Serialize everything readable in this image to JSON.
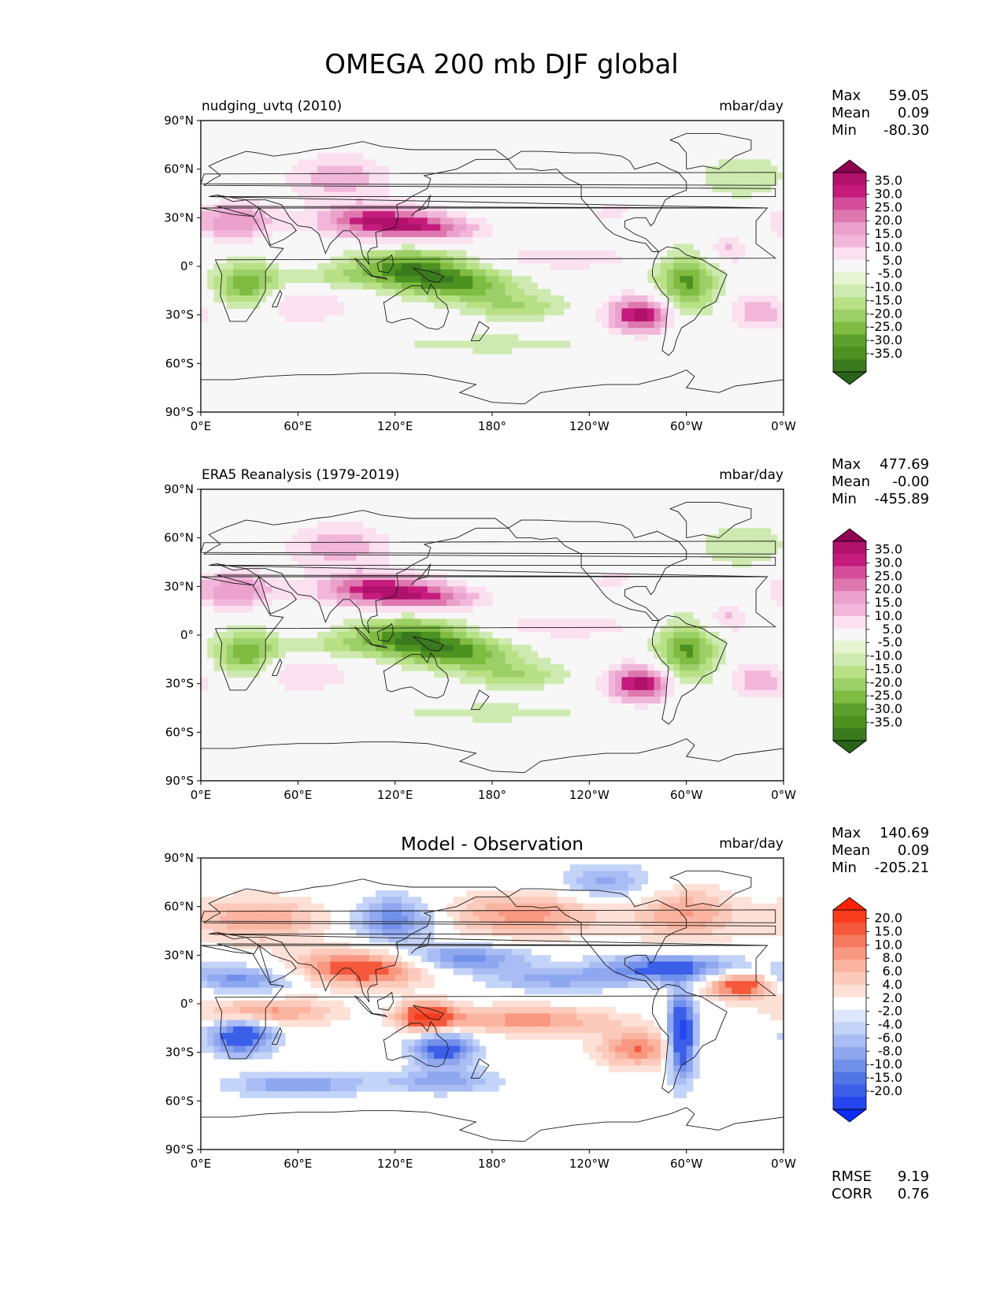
{
  "figure_title": "OMEGA 200 mb DJF global",
  "lat_ticks": [
    "90°N",
    "60°N",
    "30°N",
    "0°",
    "30°S",
    "60°S",
    "90°S"
  ],
  "lon_ticks": [
    "0°E",
    "60°E",
    "120°E",
    "180°",
    "120°W",
    "60°W",
    "0°W"
  ],
  "panels": [
    {
      "title": "nudging_uvtq (2010)",
      "units": "mbar/day",
      "stats": [
        {
          "label": "Max",
          "value": "59.05"
        },
        {
          "label": "Mean",
          "value": "0.09"
        },
        {
          "label": "Min",
          "value": "-80.30"
        }
      ],
      "colorbar": {
        "labels": [
          "35.0",
          "30.0",
          "25.0",
          "20.0",
          "15.0",
          "10.0",
          "5.0",
          "-5.0",
          "-10.0",
          "-15.0",
          "-20.0",
          "-25.0",
          "-30.0",
          "-35.0"
        ],
        "colors": [
          "#8e0152",
          "#b0116a",
          "#c51b7d",
          "#d44e9c",
          "#de77ae",
          "#eaa2cd",
          "#f1b6da",
          "#fbe0ef",
          "#f7f7f7",
          "#e6f5d0",
          "#cfeab0",
          "#b8e186",
          "#9bcf67",
          "#7fbc41",
          "#5ca12f",
          "#4d9221",
          "#3a7a1e",
          "#276419"
        ]
      }
    },
    {
      "title": "ERA5 Reanalysis (1979-2019)",
      "units": "mbar/day",
      "stats": [
        {
          "label": "Max",
          "value": "477.69"
        },
        {
          "label": "Mean",
          "value": "-0.00"
        },
        {
          "label": "Min",
          "value": "-455.89"
        }
      ],
      "colorbar": {
        "labels": [
          "35.0",
          "30.0",
          "25.0",
          "20.0",
          "15.0",
          "10.0",
          "5.0",
          "-5.0",
          "-10.0",
          "-15.0",
          "-20.0",
          "-25.0",
          "-30.0",
          "-35.0"
        ],
        "colors": [
          "#8e0152",
          "#b0116a",
          "#c51b7d",
          "#d44e9c",
          "#de77ae",
          "#eaa2cd",
          "#f1b6da",
          "#fbe0ef",
          "#f7f7f7",
          "#e6f5d0",
          "#cfeab0",
          "#b8e186",
          "#9bcf67",
          "#7fbc41",
          "#5ca12f",
          "#4d9221",
          "#3a7a1e",
          "#276419"
        ]
      }
    },
    {
      "title": "Model - Observation",
      "units": "mbar/day",
      "stats": [
        {
          "label": "Max",
          "value": "140.69"
        },
        {
          "label": "Mean",
          "value": "0.09"
        },
        {
          "label": "Min",
          "value": "-205.21"
        }
      ],
      "extra_stats": [
        {
          "label": "RMSE",
          "value": "9.19"
        },
        {
          "label": "CORR",
          "value": "0.76"
        }
      ],
      "colorbar": {
        "labels": [
          "20.0",
          "15.0",
          "10.0",
          "8.0",
          "6.0",
          "4.0",
          "2.0",
          "-2.0",
          "-4.0",
          "-6.0",
          "-8.0",
          "-10.0",
          "-15.0",
          "-20.0"
        ],
        "colors": [
          "#ff2200",
          "#f83c1c",
          "#f5583a",
          "#f67a60",
          "#f89880",
          "#fab4a0",
          "#fccabb",
          "#fde0d6",
          "#ffffff",
          "#dde6fb",
          "#c4d3f8",
          "#a9bdf4",
          "#8ea7ef",
          "#7190ea",
          "#5275e6",
          "#3b5fe8",
          "#2546ee",
          "#0a2cf5"
        ]
      }
    }
  ],
  "chart_data": {
    "type": "heatmap",
    "title": "OMEGA 200 mb DJF global",
    "variable": "OMEGA",
    "level": "200 mb",
    "season": "DJF",
    "region": "global",
    "units": "mbar/day",
    "x_range": [
      0,
      360
    ],
    "y_range": [
      -90,
      90
    ],
    "xlabel": "",
    "ylabel": "",
    "panels": [
      "nudging_uvtq (2010)",
      "ERA5 Reanalysis (1979-2019)",
      "Model - Observation"
    ],
    "contour_levels_fields": [
      -35,
      -30,
      -25,
      -20,
      -15,
      -10,
      -5,
      5,
      10,
      15,
      20,
      25,
      30,
      35
    ],
    "contour_levels_diff": [
      -20,
      -15,
      -10,
      -8,
      -6,
      -4,
      -2,
      2,
      4,
      6,
      8,
      10,
      15,
      20
    ],
    "features": {
      "fields": [
        {
          "lon": 110,
          "lat": 28,
          "dlon": 26,
          "dlat": 7,
          "v": 30
        },
        {
          "lon": 145,
          "lat": 22,
          "dlon": 22,
          "dlat": 5,
          "v": 18
        },
        {
          "lon": 20,
          "lat": 28,
          "dlon": 18,
          "dlat": 8,
          "v": 20
        },
        {
          "lon": 85,
          "lat": 55,
          "dlon": 22,
          "dlat": 10,
          "v": 14
        },
        {
          "lon": 272,
          "lat": -30,
          "dlon": 14,
          "dlat": 8,
          "v": 34
        },
        {
          "lon": 325,
          "lat": 10,
          "dlon": 10,
          "dlat": 6,
          "v": 12
        },
        {
          "lon": 345,
          "lat": -28,
          "dlon": 14,
          "dlat": 8,
          "v": 14
        },
        {
          "lon": 60,
          "lat": -22,
          "dlon": 26,
          "dlat": 10,
          "v": 10
        },
        {
          "lon": 220,
          "lat": 5,
          "dlon": 45,
          "dlat": 6,
          "v": 8
        },
        {
          "lon": 250,
          "lat": 38,
          "dlon": 18,
          "dlat": 8,
          "v": 10
        },
        {
          "lon": 130,
          "lat": 0,
          "dlon": 28,
          "dlat": 8,
          "v": -28
        },
        {
          "lon": 160,
          "lat": -12,
          "dlon": 26,
          "dlat": 7,
          "v": -22
        },
        {
          "lon": 195,
          "lat": -25,
          "dlon": 22,
          "dlat": 6,
          "v": -14
        },
        {
          "lon": 28,
          "lat": -12,
          "dlon": 14,
          "dlat": 10,
          "v": -26
        },
        {
          "lon": 300,
          "lat": -10,
          "dlon": 14,
          "dlat": 14,
          "v": -26
        },
        {
          "lon": 80,
          "lat": -8,
          "dlon": 30,
          "dlat": 5,
          "v": -10
        },
        {
          "lon": 240,
          "lat": 42,
          "dlon": 18,
          "dlat": 6,
          "v": -9
        },
        {
          "lon": 335,
          "lat": 55,
          "dlon": 20,
          "dlat": 10,
          "v": -10
        },
        {
          "lon": 180,
          "lat": -48,
          "dlon": 60,
          "dlat": 5,
          "v": -7
        }
      ],
      "diff": [
        {
          "lon": 100,
          "lat": 22,
          "dlon": 30,
          "dlat": 8,
          "v": 14
        },
        {
          "lon": 35,
          "lat": 52,
          "dlon": 30,
          "dlat": 10,
          "v": 8
        },
        {
          "lon": 200,
          "lat": 55,
          "dlon": 35,
          "dlat": 10,
          "v": 9
        },
        {
          "lon": 300,
          "lat": 55,
          "dlon": 22,
          "dlat": 12,
          "v": 8
        },
        {
          "lon": 270,
          "lat": -28,
          "dlon": 18,
          "dlat": 8,
          "v": 10
        },
        {
          "lon": 335,
          "lat": 12,
          "dlon": 16,
          "dlat": 6,
          "v": 16
        },
        {
          "lon": 200,
          "lat": -10,
          "dlon": 40,
          "dlat": 6,
          "v": 9
        },
        {
          "lon": 40,
          "lat": -5,
          "dlon": 30,
          "dlat": 6,
          "v": 9
        },
        {
          "lon": 140,
          "lat": -8,
          "dlon": 12,
          "dlat": 6,
          "v": 16
        },
        {
          "lon": 160,
          "lat": 28,
          "dlon": 30,
          "dlat": 6,
          "v": -10
        },
        {
          "lon": 120,
          "lat": 52,
          "dlon": 18,
          "dlat": 10,
          "v": -10
        },
        {
          "lon": 20,
          "lat": 15,
          "dlon": 30,
          "dlat": 6,
          "v": -9
        },
        {
          "lon": 25,
          "lat": -20,
          "dlon": 14,
          "dlat": 8,
          "v": -14
        },
        {
          "lon": 290,
          "lat": 22,
          "dlon": 30,
          "dlat": 6,
          "v": -12
        },
        {
          "lon": 220,
          "lat": 15,
          "dlon": 30,
          "dlat": 5,
          "v": -7
        },
        {
          "lon": 150,
          "lat": -28,
          "dlon": 14,
          "dlat": 8,
          "v": -12
        },
        {
          "lon": 297,
          "lat": -20,
          "dlon": 6,
          "dlat": 18,
          "v": -18
        },
        {
          "lon": 250,
          "lat": 75,
          "dlon": 20,
          "dlat": 8,
          "v": -7
        },
        {
          "lon": 60,
          "lat": -50,
          "dlon": 30,
          "dlat": 5,
          "v": -8
        },
        {
          "lon": 150,
          "lat": -48,
          "dlon": 25,
          "dlat": 5,
          "v": -7
        }
      ]
    }
  }
}
